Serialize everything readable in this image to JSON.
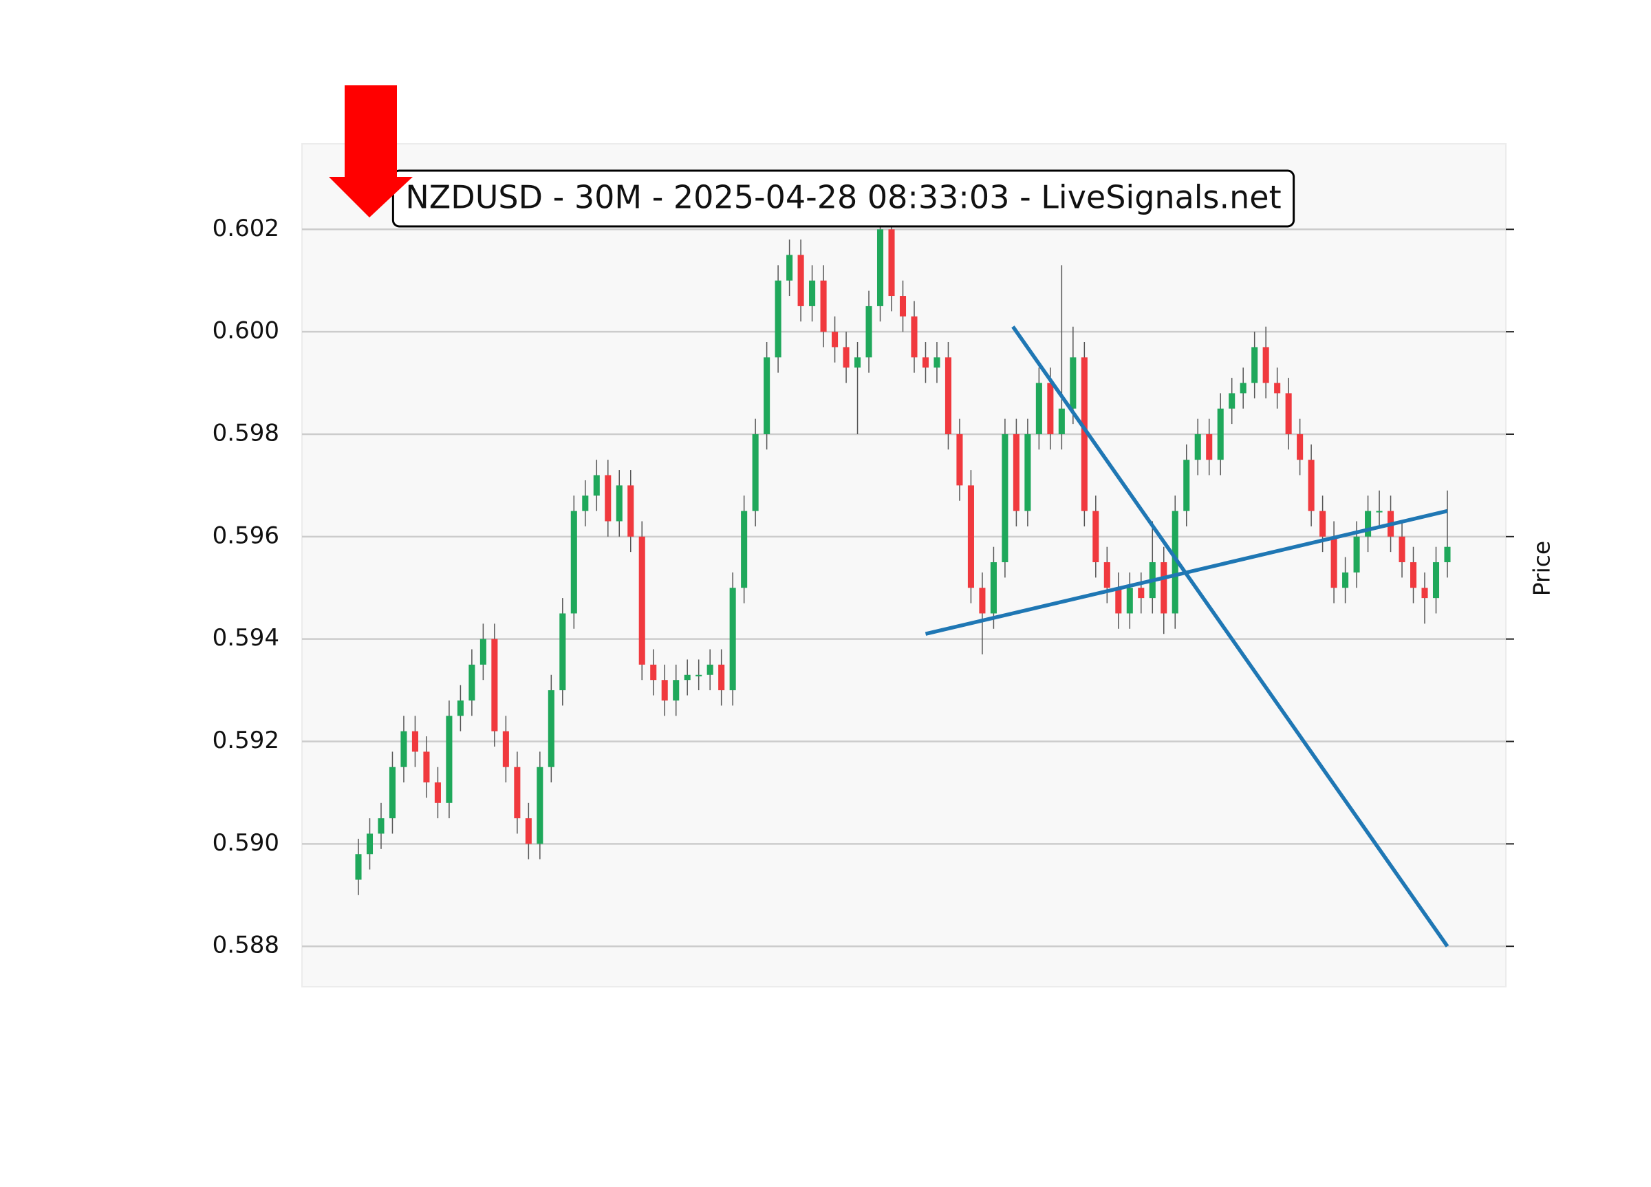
{
  "chart_data": {
    "type": "candlestick",
    "title": "NZDUSD - 30M - 2025-04-28 08:33:03 - LiveSignals.net",
    "y_label": "Price",
    "grid": true,
    "up_color": "#1fa85b",
    "down_color": "#f0393e",
    "wick_color": "#555555",
    "ylim": [
      0.58721,
      0.60367
    ],
    "yticks": [
      0.588,
      {
        "value": 0.59,
        "label": "0.590"
      },
      0.592,
      0.594,
      0.596,
      0.598,
      {
        "value": 0.6,
        "label": "0.600"
      },
      0.602
    ],
    "open": [
      0.5893,
      0.5898,
      0.5902,
      0.5905,
      0.5915,
      0.5922,
      0.5918,
      0.5912,
      0.5908,
      0.5925,
      0.5928,
      0.5935,
      0.594,
      0.5922,
      0.5915,
      0.5905,
      0.59,
      0.5915,
      0.593,
      0.5945,
      0.5965,
      0.5968,
      0.5972,
      0.5963,
      0.597,
      0.596,
      0.5935,
      0.5932,
      0.5928,
      0.5932,
      0.5933,
      0.5933,
      0.5935,
      0.593,
      0.595,
      0.5965,
      0.598,
      0.5995,
      0.601,
      0.6015,
      0.6005,
      0.601,
      0.6,
      0.5997,
      0.5993,
      0.5995,
      0.6005,
      0.602,
      0.6007,
      0.6003,
      0.5995,
      0.5993,
      0.5995,
      0.598,
      0.597,
      0.595,
      0.5945,
      0.5955,
      0.598,
      0.5965,
      0.598,
      0.599,
      0.598,
      0.5985,
      0.5995,
      0.5965,
      0.5955,
      0.595,
      0.5945,
      0.595,
      0.5948,
      0.5955,
      0.5945,
      0.5965,
      0.5975,
      0.598,
      0.5975,
      0.5985,
      0.5988,
      0.599,
      0.5997,
      0.599,
      0.5988,
      0.598,
      0.5975,
      0.5965,
      0.596,
      0.595,
      0.5953,
      0.596,
      0.5965,
      0.5965,
      0.596,
      0.5955,
      0.595,
      0.5948,
      0.5955
    ],
    "high": [
      0.5901,
      0.5905,
      0.5908,
      0.5918,
      0.5925,
      0.5925,
      0.5921,
      0.5915,
      0.5928,
      0.5931,
      0.5938,
      0.5943,
      0.5943,
      0.5925,
      0.5918,
      0.5908,
      0.5918,
      0.5933,
      0.5948,
      0.5968,
      0.5971,
      0.5975,
      0.5975,
      0.5973,
      0.5973,
      0.5963,
      0.5938,
      0.5935,
      0.5935,
      0.5936,
      0.5936,
      0.5938,
      0.5938,
      0.5953,
      0.5968,
      0.5983,
      0.5998,
      0.6013,
      0.6018,
      0.6018,
      0.6013,
      0.6013,
      0.6003,
      0.6,
      0.5998,
      0.6008,
      0.6023,
      0.6023,
      0.601,
      0.6006,
      0.5998,
      0.5998,
      0.5998,
      0.5983,
      0.5973,
      0.5953,
      0.5958,
      0.5983,
      0.5983,
      0.5983,
      0.5993,
      0.5993,
      0.6013,
      0.6001,
      0.5998,
      0.5968,
      0.5958,
      0.5953,
      0.5953,
      0.5953,
      0.5963,
      0.5958,
      0.5968,
      0.5978,
      0.5983,
      0.5983,
      0.5988,
      0.5991,
      0.5993,
      0.6,
      0.6001,
      0.5993,
      0.5991,
      0.5983,
      0.5978,
      0.5968,
      0.5963,
      0.5956,
      0.5963,
      0.5968,
      0.5969,
      0.5968,
      0.5963,
      0.5958,
      0.5953,
      0.5958,
      0.5969
    ],
    "low": [
      0.589,
      0.5895,
      0.5899,
      0.5902,
      0.5912,
      0.5915,
      0.5909,
      0.5905,
      0.5905,
      0.5922,
      0.5925,
      0.5932,
      0.5919,
      0.5912,
      0.5902,
      0.5897,
      0.5897,
      0.5912,
      0.5927,
      0.5942,
      0.5962,
      0.5965,
      0.596,
      0.596,
      0.5957,
      0.5932,
      0.5929,
      0.5925,
      0.5925,
      0.5929,
      0.593,
      0.593,
      0.5927,
      0.5927,
      0.5947,
      0.5962,
      0.5977,
      0.5992,
      0.6007,
      0.6002,
      0.6002,
      0.5997,
      0.5994,
      0.599,
      0.598,
      0.5992,
      0.6002,
      0.6004,
      0.6,
      0.5992,
      0.599,
      0.599,
      0.5977,
      0.5967,
      0.5947,
      0.5937,
      0.5942,
      0.5952,
      0.5962,
      0.5962,
      0.5977,
      0.5977,
      0.5977,
      0.5982,
      0.5962,
      0.5952,
      0.5947,
      0.5942,
      0.5942,
      0.5945,
      0.5945,
      0.5941,
      0.5942,
      0.5962,
      0.5972,
      0.5972,
      0.5972,
      0.5982,
      0.5985,
      0.5987,
      0.5987,
      0.5985,
      0.5977,
      0.5972,
      0.5962,
      0.5957,
      0.5947,
      0.5947,
      0.595,
      0.5957,
      0.5962,
      0.5957,
      0.5952,
      0.5947,
      0.5943,
      0.5945,
      0.5952
    ],
    "close": [
      0.5898,
      0.5902,
      0.5905,
      0.5915,
      0.5922,
      0.5918,
      0.5912,
      0.5908,
      0.5925,
      0.5928,
      0.5935,
      0.594,
      0.5922,
      0.5915,
      0.5905,
      0.59,
      0.5915,
      0.593,
      0.5945,
      0.5965,
      0.5968,
      0.5972,
      0.5963,
      0.597,
      0.596,
      0.5935,
      0.5932,
      0.5928,
      0.5932,
      0.5933,
      0.5933,
      0.5935,
      0.593,
      0.595,
      0.5965,
      0.598,
      0.5995,
      0.601,
      0.6015,
      0.6005,
      0.601,
      0.6,
      0.5997,
      0.5993,
      0.5995,
      0.6005,
      0.602,
      0.6007,
      0.6003,
      0.5995,
      0.5993,
      0.5995,
      0.598,
      0.597,
      0.595,
      0.5945,
      0.5955,
      0.598,
      0.5965,
      0.598,
      0.599,
      0.598,
      0.5985,
      0.5995,
      0.5965,
      0.5955,
      0.595,
      0.5945,
      0.595,
      0.5948,
      0.5955,
      0.5945,
      0.5965,
      0.5975,
      0.598,
      0.5975,
      0.5985,
      0.5988,
      0.599,
      0.5997,
      0.599,
      0.5988,
      0.598,
      0.5975,
      0.5965,
      0.596,
      0.595,
      0.5953,
      0.596,
      0.5965,
      0.5965,
      0.596,
      0.5955,
      0.595,
      0.5948,
      0.5955,
      0.5958
    ],
    "lines": [
      {
        "color": "#1f77b4",
        "x": [
          57.7,
          96
        ],
        "y": [
          0.6001,
          0.588
        ]
      },
      {
        "color": "#1f77b4",
        "x": [
          50,
          96
        ],
        "y": [
          0.5941,
          0.5965
        ]
      }
    ]
  }
}
